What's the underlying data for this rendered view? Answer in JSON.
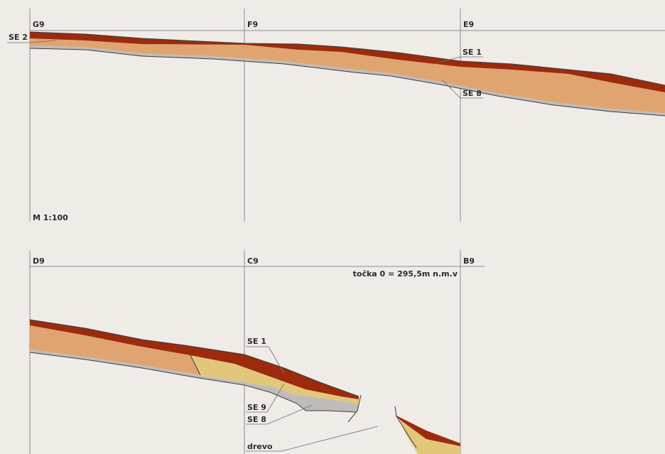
{
  "grid_labels": {
    "g9": "G9",
    "f9": "F9",
    "e9": "E9",
    "d9": "D9",
    "c9": "C9",
    "b9": "B9"
  },
  "scale": "M 1:100",
  "datum": "točka 0 = 295,5m n.m.v",
  "layers": {
    "se1": "SE 1",
    "se2": "SE 2",
    "se8": "SE 8",
    "se9": "SE 9",
    "drevo": "drevo"
  },
  "colors": {
    "background": "#efebe6",
    "topsoil_se1": "#9c2a0c",
    "subsoil": "#dfa470",
    "gravel_se8": "#bdbcba",
    "clay_se9": "#e2c679"
  }
}
